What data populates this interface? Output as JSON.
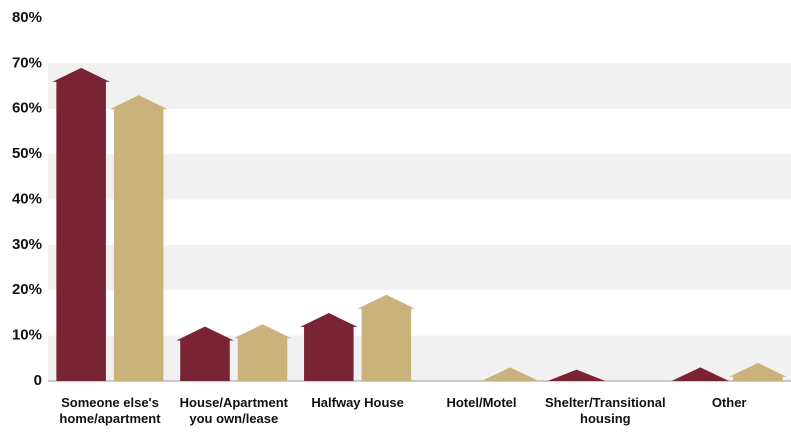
{
  "chart_data": {
    "type": "house-bar",
    "categories": [
      "Someone else's home/apartment",
      "House/Apartment you own/lease",
      "Halfway House",
      "Hotel/Motel",
      "Shelter/Transitional housing",
      "Other"
    ],
    "series": [
      {
        "color": "#7a2332",
        "values": [
          69,
          12,
          15,
          0,
          2.5,
          3
        ]
      },
      {
        "color": "#c9b27c",
        "values": [
          63,
          12.5,
          19,
          3,
          0,
          4
        ]
      }
    ],
    "ylim": [
      0,
      80
    ],
    "yticks": [
      0,
      {
        "value": 10,
        "label": "10%"
      },
      {
        "value": 20,
        "label": "20%"
      },
      {
        "value": 30,
        "label": "30%"
      },
      {
        "value": 40,
        "label": "40%"
      },
      {
        "value": 50,
        "label": "50%"
      },
      {
        "value": 60,
        "label": "60%"
      },
      {
        "value": 70,
        "label": "70%"
      },
      {
        "value": 80,
        "label": "80%"
      }
    ],
    "grid": true
  }
}
